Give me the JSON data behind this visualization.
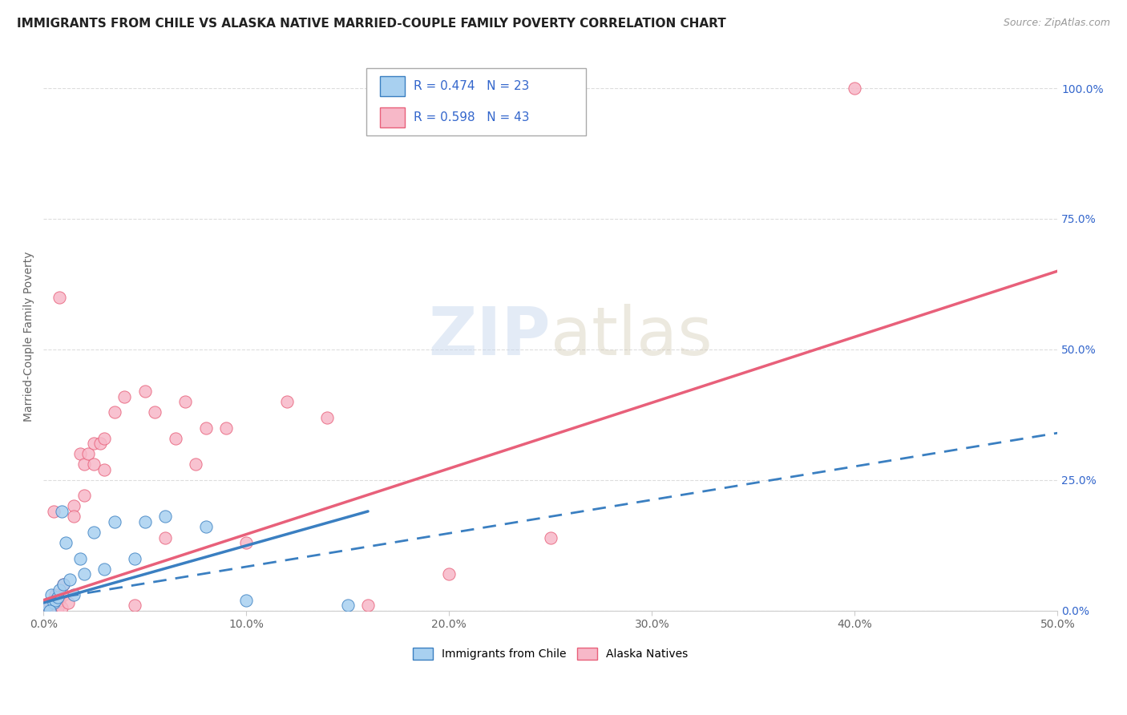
{
  "title": "IMMIGRANTS FROM CHILE VS ALASKA NATIVE MARRIED-COUPLE FAMILY POVERTY CORRELATION CHART",
  "source": "Source: ZipAtlas.com",
  "ylabel": "Married-Couple Family Poverty",
  "legend_entry1": "R = 0.474   N = 23",
  "legend_entry2": "R = 0.598   N = 43",
  "legend_label1": "Immigrants from Chile",
  "legend_label2": "Alaska Natives",
  "color_chile": "#a8d0f0",
  "color_alaska": "#f7b8c8",
  "color_chile_line": "#3a7fc1",
  "color_alaska_line": "#e8607a",
  "color_text_blue": "#3366cc",
  "watermark_zip": "ZIP",
  "watermark_atlas": "atlas",
  "chile_x": [
    0.2,
    0.4,
    0.5,
    0.6,
    0.7,
    0.8,
    1.0,
    1.1,
    1.3,
    1.5,
    1.8,
    2.0,
    2.5,
    3.0,
    3.5,
    4.5,
    5.0,
    6.0,
    8.0,
    10.0,
    15.0,
    0.3,
    0.9
  ],
  "chile_y": [
    1.0,
    3.0,
    1.5,
    2.0,
    2.5,
    4.0,
    5.0,
    13.0,
    6.0,
    3.0,
    10.0,
    7.0,
    15.0,
    8.0,
    17.0,
    10.0,
    17.0,
    18.0,
    16.0,
    2.0,
    1.0,
    0.0,
    19.0
  ],
  "alaska_x": [
    0.1,
    0.2,
    0.3,
    0.4,
    0.5,
    0.5,
    0.6,
    0.7,
    0.8,
    0.9,
    1.0,
    1.0,
    1.2,
    1.5,
    1.5,
    1.8,
    2.0,
    2.0,
    2.2,
    2.5,
    2.5,
    2.8,
    3.0,
    3.0,
    3.5,
    4.0,
    5.0,
    5.5,
    6.0,
    7.0,
    7.5,
    8.0,
    9.0,
    10.0,
    12.0,
    14.0,
    16.0,
    20.0,
    25.0,
    40.0,
    0.8,
    4.5,
    6.5
  ],
  "alaska_y": [
    0.5,
    1.0,
    1.5,
    0.5,
    2.0,
    19.0,
    3.0,
    0.5,
    2.0,
    0.5,
    5.0,
    3.0,
    1.5,
    20.0,
    18.0,
    30.0,
    22.0,
    28.0,
    30.0,
    28.0,
    32.0,
    32.0,
    33.0,
    27.0,
    38.0,
    41.0,
    42.0,
    38.0,
    14.0,
    40.0,
    28.0,
    35.0,
    35.0,
    13.0,
    40.0,
    37.0,
    1.0,
    7.0,
    14.0,
    100.0,
    60.0,
    1.0,
    33.0
  ],
  "xlim": [
    0,
    50
  ],
  "ylim": [
    0,
    105
  ],
  "xticks": [
    0,
    10,
    20,
    30,
    40,
    50
  ],
  "xtick_labels": [
    "0.0%",
    "10.0%",
    "20.0%",
    "30.0%",
    "40.0%",
    "50.0%"
  ],
  "yticks": [
    0,
    25,
    50,
    75,
    100
  ],
  "ytick_labels": [
    "0.0%",
    "25.0%",
    "50.0%",
    "75.0%",
    "100.0%"
  ],
  "chile_line_x0": 0,
  "chile_line_y0": 1.5,
  "chile_line_x1": 16,
  "chile_line_y1": 19,
  "chile_dash_x0": 0,
  "chile_dash_y0": 2.0,
  "chile_dash_x1": 50,
  "chile_dash_y1": 34,
  "alaska_line_x0": 0,
  "alaska_line_y0": 2.0,
  "alaska_line_x1": 50,
  "alaska_line_y1": 65
}
